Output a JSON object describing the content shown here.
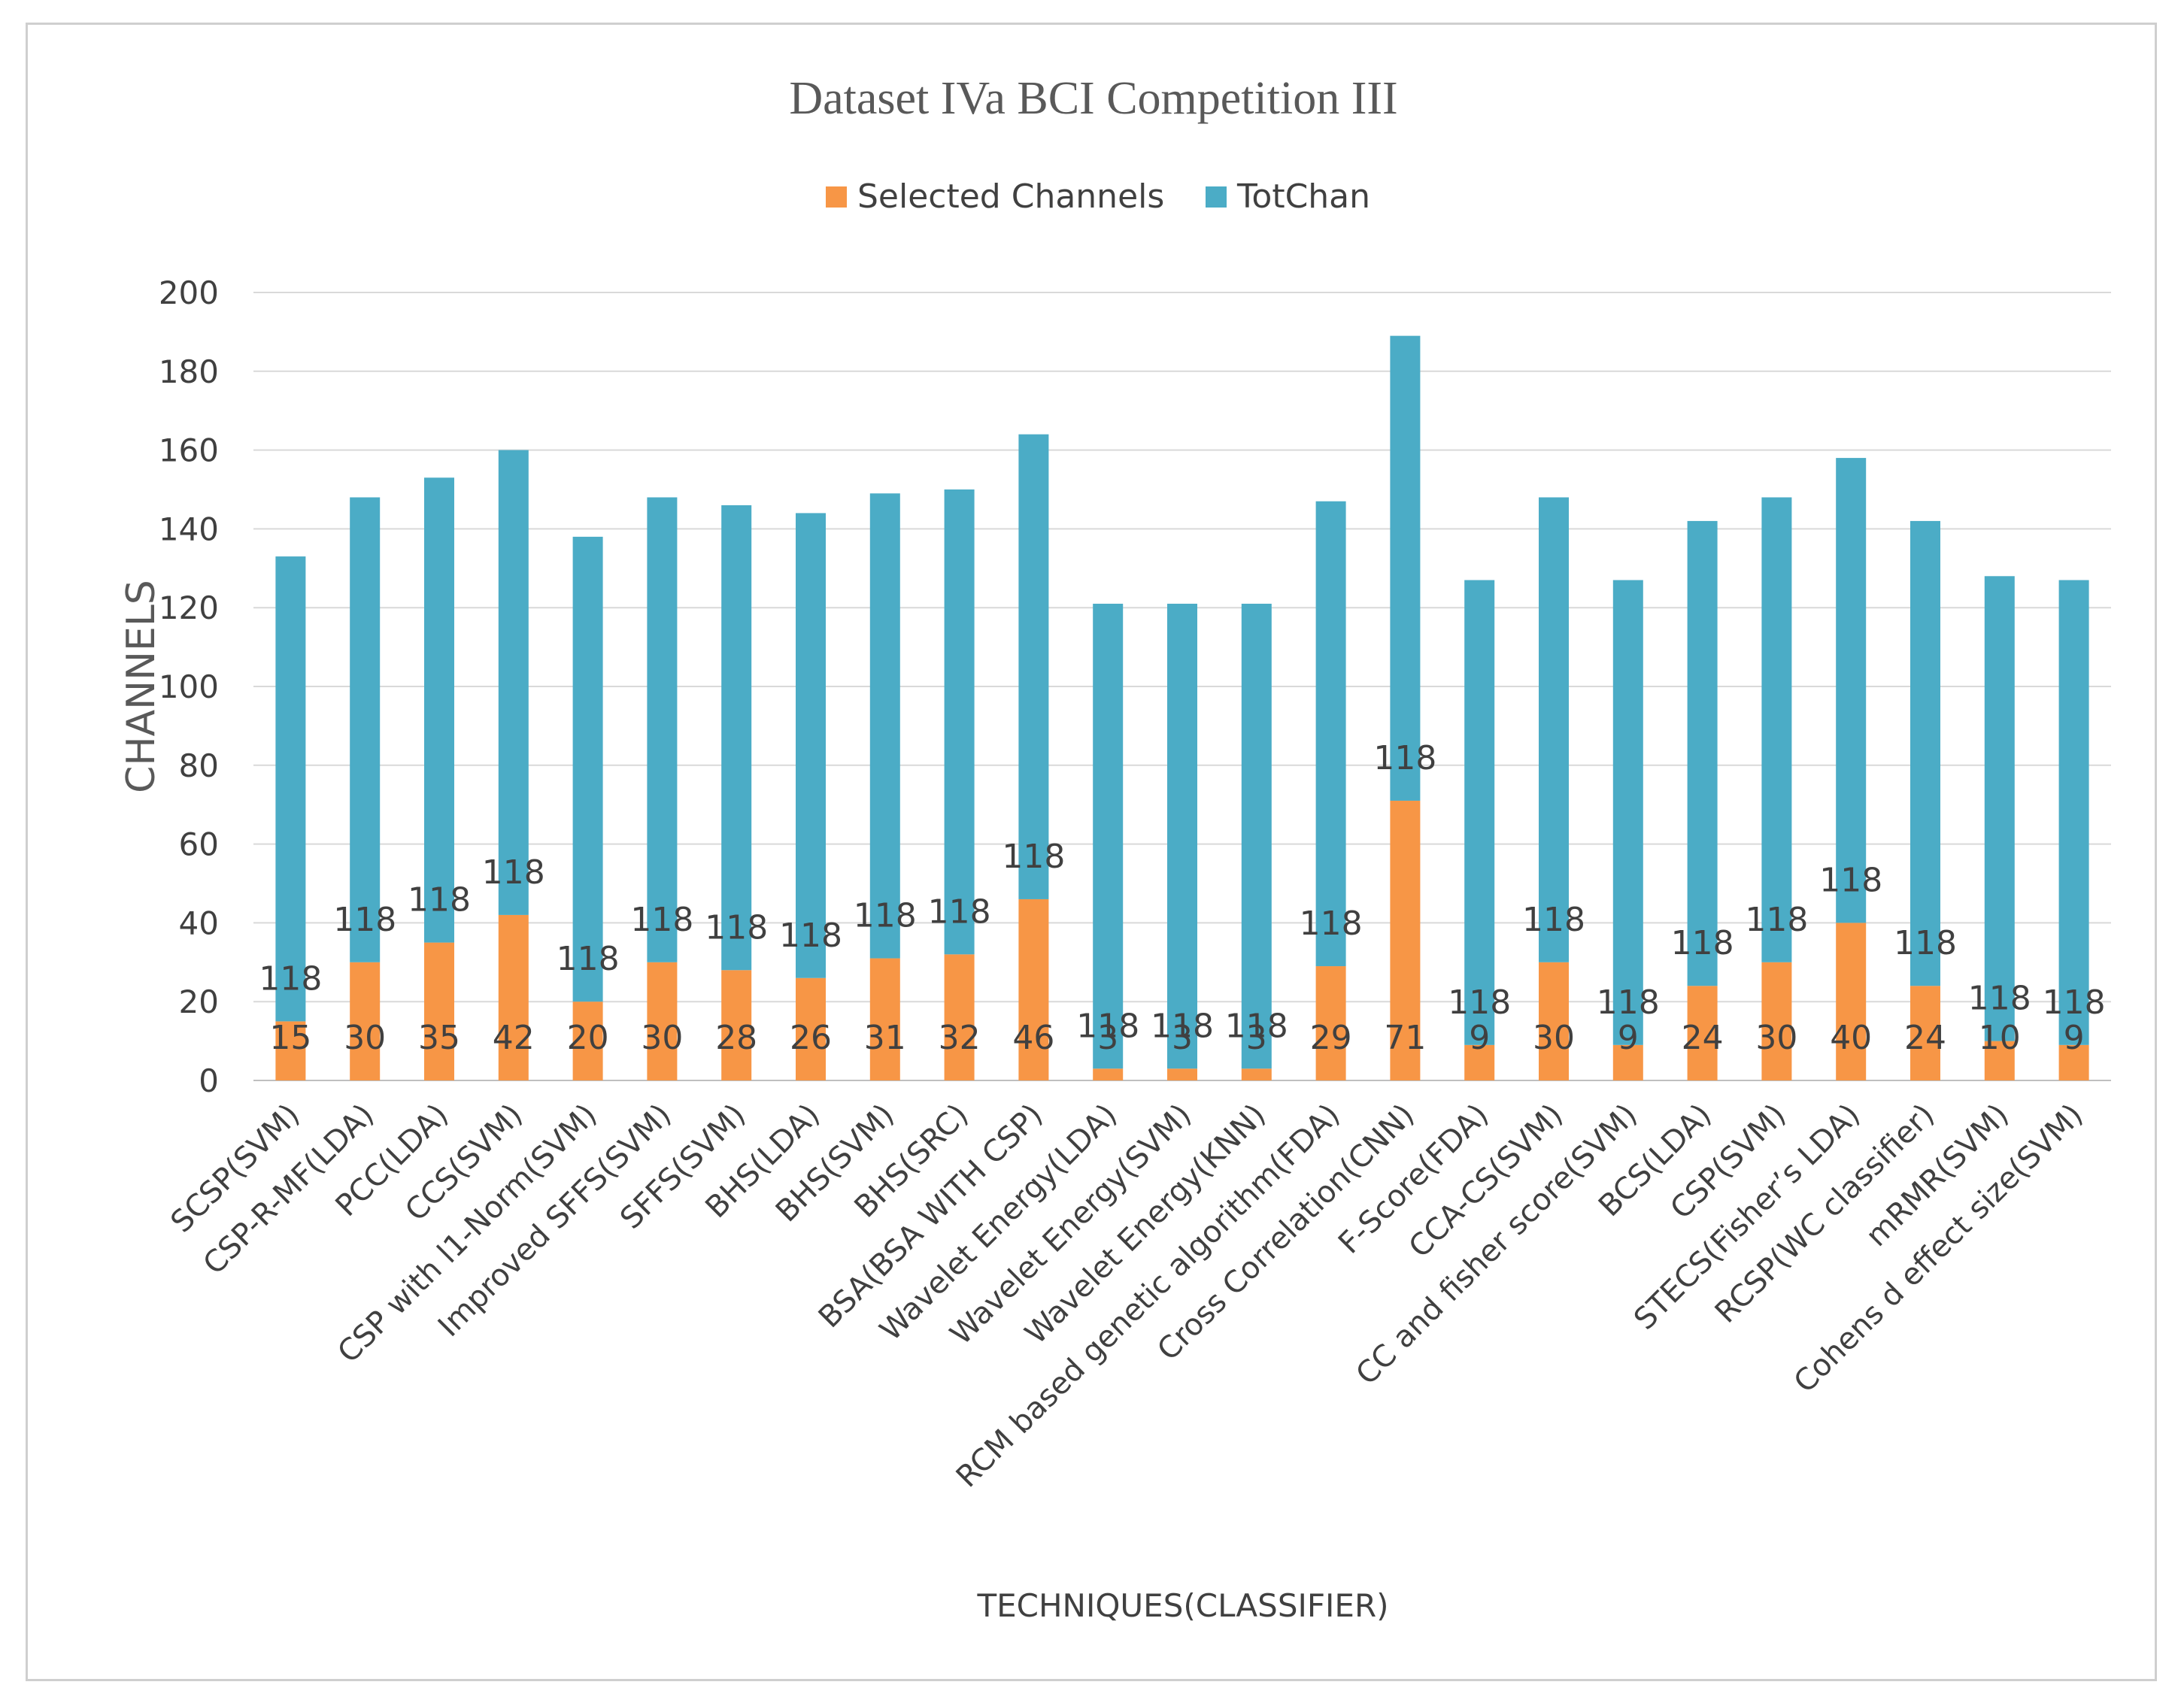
{
  "chart_data": {
    "type": "bar",
    "stacked": true,
    "title": "Dataset IVa BCI Competition III",
    "xlabel": "TECHNIQUES(CLASSIFIER)",
    "ylabel": "CHANNELS",
    "ylim": [
      0,
      200
    ],
    "yticks": [
      "0",
      "20",
      "40",
      "60",
      "80",
      "100",
      "120",
      "140",
      "160",
      "180",
      "200"
    ],
    "grid": true,
    "legend_position": "top",
    "categories": [
      "SCSP(SVM)",
      "CSP-R-MF(LDA)",
      "PCC(LDA)",
      "CCS(SVM)",
      "CSP with l1-Norm(SVM)",
      "Improved SFFS(SVM)",
      "SFFS(SVM)",
      "BHS(LDA)",
      "BHS(SVM)",
      "BHS(SRC)",
      "BSA(BSA WITH CSP)",
      "Wavelet Energy(LDA)",
      "Wavelet Energy(SVM)",
      "Wavelet Energy(KNN)",
      "RCM based genetic algorithm(FDA)",
      "Cross Correlation(CNN)",
      "F-Score(FDA)",
      "CCA-CS(SVM)",
      "CC and fisher score(SVM)",
      "BCS(LDA)",
      "CSP(SVM)",
      "STECS(Fisher’s LDA)",
      "RCSP(WC classifier)",
      "mRMR(SVM)",
      "Cohens d effect size(SVM)"
    ],
    "series": [
      {
        "name": "Selected Channels",
        "color": "#f79646",
        "values": [
          15,
          30,
          35,
          42,
          20,
          30,
          28,
          26,
          31,
          32,
          46,
          3,
          3,
          3,
          29,
          71,
          9,
          30,
          9,
          24,
          30,
          40,
          24,
          10,
          9
        ],
        "labels": [
          "15",
          "30",
          "35",
          "42",
          "20",
          "30",
          "28",
          "26",
          "31",
          "32",
          "46",
          "3",
          "3",
          "3",
          "29",
          "71",
          "9",
          "30",
          "9",
          "24",
          "30",
          "40",
          "24",
          "10",
          "9"
        ]
      },
      {
        "name": "TotChan",
        "color": "#4bacc6",
        "values": [
          118,
          118,
          118,
          118,
          118,
          118,
          118,
          118,
          118,
          118,
          118,
          118,
          118,
          118,
          118,
          118,
          118,
          118,
          118,
          118,
          118,
          118,
          118,
          118,
          118
        ],
        "labels": [
          "118",
          "118",
          "118",
          "118",
          "118",
          "118",
          "118",
          "118",
          "118",
          "118",
          "118",
          "118",
          "118",
          "118",
          "118",
          "118",
          "118",
          "118",
          "118",
          "118",
          "118",
          "118",
          "118",
          "118",
          "118"
        ]
      }
    ]
  }
}
